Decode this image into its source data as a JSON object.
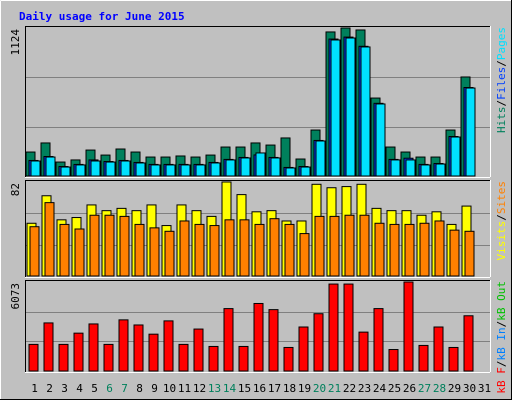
{
  "chart_data": {
    "type": "bar",
    "title": "Daily usage for June 2015",
    "categories": [
      "1",
      "2",
      "3",
      "4",
      "5",
      "6",
      "7",
      "8",
      "9",
      "10",
      "11",
      "12",
      "13",
      "14",
      "15",
      "16",
      "17",
      "18",
      "19",
      "20",
      "21",
      "22",
      "23",
      "24",
      "25",
      "26",
      "27",
      "28",
      "29",
      "30",
      "31"
    ],
    "category_colors": [
      "#000000",
      "#000000",
      "#000000",
      "#000000",
      "#000000",
      "#00805c",
      "#00805c",
      "#000000",
      "#000000",
      "#000000",
      "#000000",
      "#000000",
      "#00805c",
      "#00805c",
      "#000000",
      "#000000",
      "#000000",
      "#000000",
      "#000000",
      "#00805c",
      "#00805c",
      "#000000",
      "#000000",
      "#000000",
      "#000000",
      "#000000",
      "#00805c",
      "#00805c",
      "#000000",
      "#000000",
      "#000000"
    ],
    "legend_separator": "/",
    "panels": [
      {
        "ylim": [
          0,
          1124
        ],
        "yticks": [
          1124
        ],
        "series": [
          {
            "name": "Hits",
            "color": "#00805c",
            "values": [
              182,
              251,
              106,
              122,
              197,
              159,
              205,
              182,
              144,
              144,
              152,
              144,
              159,
              220,
              220,
              251,
              235,
              289,
              129,
              349,
              1094,
              1124,
              1109,
              592,
              220,
              182,
              144,
              144,
              349,
              752,
              0
            ]
          },
          {
            "name": "Files",
            "color": "#0040ff",
            "values": [
              118,
              148,
              72,
              88,
              122,
              110,
              118,
              103,
              88,
              88,
              88,
              88,
              103,
              126,
              141,
              160,
              141,
              65,
              72,
              270,
              1040,
              1055,
              985,
              552,
              126,
              135,
              88,
              95,
              300,
              672,
              0
            ]
          },
          {
            "name": "Pages",
            "color": "#00e0ff",
            "values": [
              114,
              144,
              68,
              84,
              114,
              106,
              114,
              99,
              84,
              84,
              84,
              84,
              99,
              122,
              137,
              175,
              137,
              61,
              68,
              266,
              1033,
              1048,
              980,
              547,
              122,
              122,
              84,
              91,
              296,
              668,
              0
            ]
          }
        ]
      },
      {
        "ylim": [
          0,
          82
        ],
        "yticks": [
          82
        ],
        "series": [
          {
            "name": "Visits",
            "color": "#ffff00",
            "values": [
              46,
              70,
              49,
              51,
              62,
              57,
              59,
              57,
              62,
              44,
              62,
              57,
              52,
              82,
              71,
              56,
              57,
              48,
              48,
              80,
              77,
              78,
              80,
              59,
              57,
              57,
              53,
              56,
              45,
              61,
              0
            ]
          },
          {
            "name": "Sites",
            "color": "#ff8000",
            "values": [
              43,
              64,
              45,
              41,
              53,
              53,
              52,
              45,
              42,
              39,
              48,
              45,
              44,
              49,
              49,
              45,
              50,
              45,
              37,
              52,
              52,
              53,
              53,
              46,
              45,
              45,
              46,
              48,
              40,
              39,
              0
            ]
          }
        ]
      },
      {
        "ylim": [
          0,
          6073
        ],
        "yticks": [
          6073
        ],
        "series": [
          {
            "name": "kB F",
            "color": "#ff0000",
            "values": [
              1815,
              3281,
              1815,
              2583,
              3211,
              1815,
              3490,
              3141,
              2513,
              3420,
              1815,
              2862,
              1675,
              4258,
              1675,
              4607,
              4188,
              1606,
              3002,
              3909,
              5933,
              5933,
              2653,
              4258,
              1466,
              6073,
              1745,
              3002,
              1606,
              3769,
              0
            ]
          }
        ],
        "legend_only": [
          {
            "name": "kB In",
            "color": "#0080ff"
          },
          {
            "name": "kB Out",
            "color": "#00c000"
          }
        ]
      }
    ]
  }
}
